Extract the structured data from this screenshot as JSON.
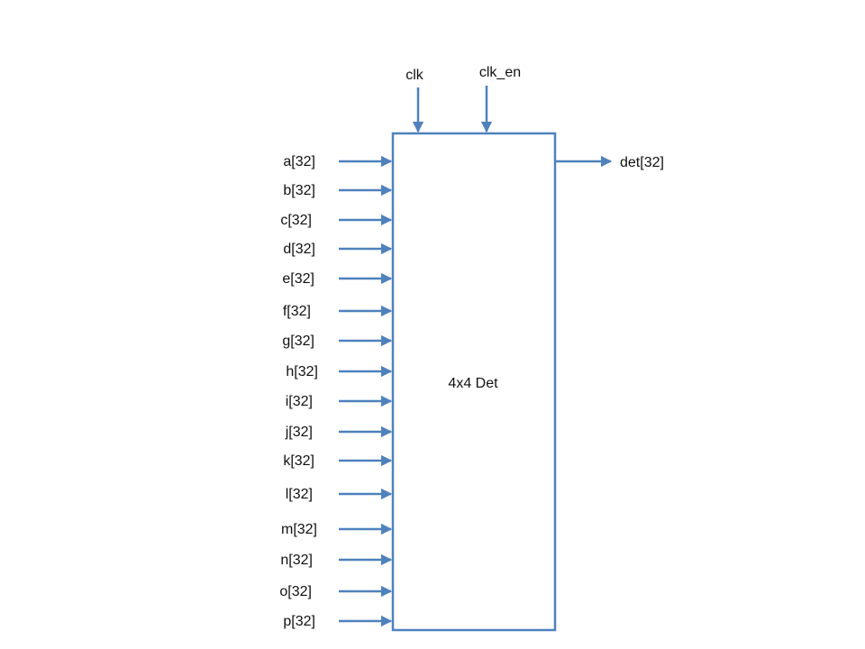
{
  "block": {
    "label": "4x4 Det"
  },
  "clock_inputs": [
    {
      "label": "clk"
    },
    {
      "label": "clk_en"
    }
  ],
  "inputs": [
    {
      "label": "a[32]"
    },
    {
      "label": "b[32]"
    },
    {
      "label": "c[32]"
    },
    {
      "label": "d[32]"
    },
    {
      "label": "e[32]"
    },
    {
      "label": "f[32]"
    },
    {
      "label": "g[32]"
    },
    {
      "label": "h[32]"
    },
    {
      "label": "i[32]"
    },
    {
      "label": "j[32]"
    },
    {
      "label": "k[32]"
    },
    {
      "label": "l[32]"
    },
    {
      "label": "m[32]"
    },
    {
      "label": "n[32]"
    },
    {
      "label": "o[32]"
    },
    {
      "label": "p[32]"
    }
  ],
  "output": {
    "label": "det[32]"
  },
  "colors": {
    "line": "#4F81BD",
    "text": "#111111"
  }
}
